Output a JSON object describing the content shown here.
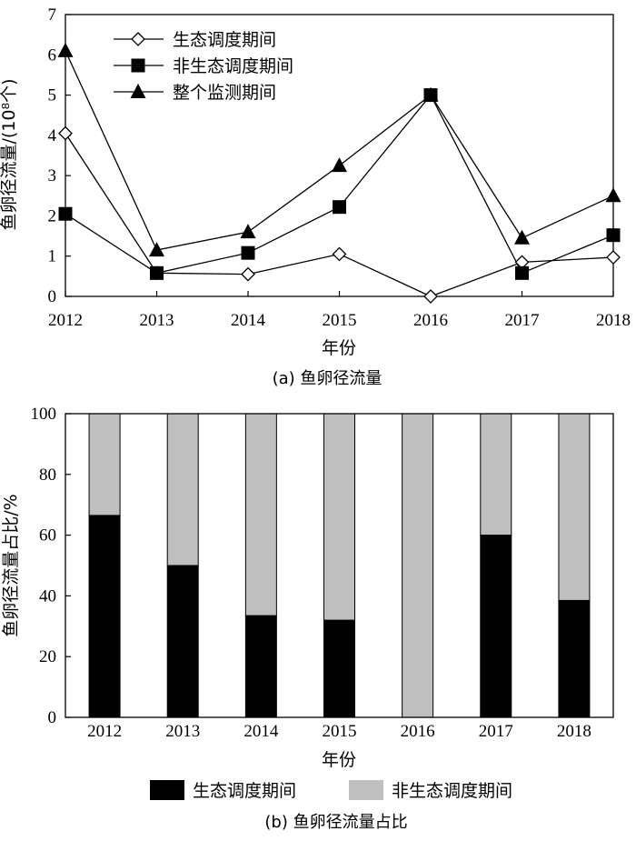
{
  "chart_data": [
    {
      "type": "line",
      "caption": "(a) 鱼卵径流量",
      "xlabel": "年份",
      "ylabel": "鱼卵径流量/(10⁸个)",
      "x": [
        "2012",
        "2013",
        "2014",
        "2015",
        "2016",
        "2017",
        "2018"
      ],
      "ylim": [
        0,
        7
      ],
      "yticks": [
        0,
        1,
        2,
        3,
        4,
        5,
        6,
        7
      ],
      "legend_position": "top-left",
      "series": [
        {
          "name": "生态调度期间",
          "marker": "diamond-open",
          "values": [
            4.05,
            0.58,
            0.55,
            1.05,
            0.0,
            0.85,
            0.97
          ]
        },
        {
          "name": "非生态调度期间",
          "marker": "square-filled",
          "values": [
            2.05,
            0.58,
            1.08,
            2.22,
            5.0,
            0.58,
            1.52
          ]
        },
        {
          "name": "整个监测期间",
          "marker": "triangle-filled",
          "values": [
            6.1,
            1.15,
            1.6,
            3.25,
            5.0,
            1.45,
            2.5
          ]
        }
      ]
    },
    {
      "type": "bar",
      "stacked": true,
      "caption": "(b) 鱼卵径流量占比",
      "xlabel": "年份",
      "ylabel": "鱼卵径流量占比/%",
      "categories": [
        "2012",
        "2013",
        "2014",
        "2015",
        "2016",
        "2017",
        "2018"
      ],
      "ylim": [
        0,
        100
      ],
      "yticks": [
        0,
        20,
        40,
        60,
        80,
        100
      ],
      "legend_position": "bottom",
      "series": [
        {
          "name": "生态调度期间",
          "color": "#000000",
          "values": [
            66.5,
            50,
            33.5,
            32,
            0,
            60,
            38.5
          ]
        },
        {
          "name": "非生态调度期间",
          "color": "#bfbfbf",
          "values": [
            33.5,
            50,
            66.5,
            68,
            100,
            40,
            61.5
          ]
        }
      ]
    }
  ]
}
